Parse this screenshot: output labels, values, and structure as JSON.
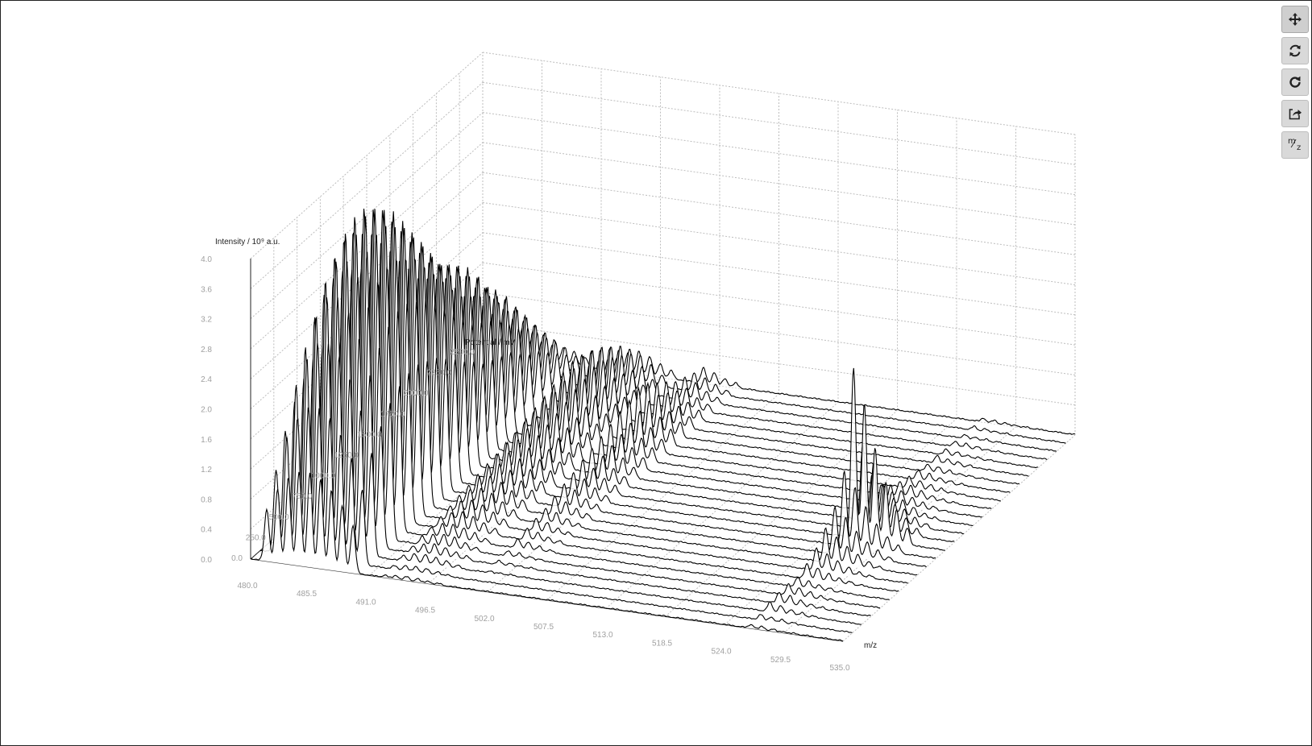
{
  "toolbar": {
    "buttons": [
      {
        "name": "pan-tool",
        "icon": "move-arrows-icon"
      },
      {
        "name": "rotate-tool",
        "icon": "rotate-arrows-icon"
      },
      {
        "name": "reset-view",
        "icon": "refresh-icon"
      },
      {
        "name": "export",
        "icon": "share-export-icon"
      },
      {
        "name": "mz-unit",
        "icon": "m-over-z-icon",
        "label_m": "m",
        "label_z": "z"
      }
    ]
  },
  "chart_data": {
    "type": "line",
    "title": "",
    "xlabel": "m/z",
    "ylabel": "Potential / mV",
    "zlabel": "Intensity / 10⁹ a.u.",
    "x_ticks": [
      "480.0",
      "485.5",
      "491.0",
      "496.5",
      "502.0",
      "507.5",
      "513.0",
      "518.5",
      "524.0",
      "529.5",
      "535.0"
    ],
    "y_ticks": [
      "0.0",
      "250.0",
      "500.0",
      "750.0",
      "1000.0",
      "1250.0",
      "1500.0",
      "1750.0",
      "2000.0",
      "2250.0",
      "2500.0"
    ],
    "z_ticks": [
      "0.0",
      "0.4",
      "0.8",
      "1.2",
      "1.6",
      "2.0",
      "2.4",
      "2.8",
      "3.2",
      "3.6",
      "4.0"
    ],
    "xlim": [
      480,
      535
    ],
    "ylim": [
      0,
      2500
    ],
    "zlim": [
      0,
      4
    ],
    "grid": true,
    "line_color": "#000000",
    "grid_color": "#bdbdbd",
    "tick_color": "#a0a0a0",
    "potentials": [
      0,
      100,
      200,
      300,
      400,
      500,
      600,
      700,
      800,
      900,
      1000,
      1100,
      1200,
      1300,
      1400,
      1500,
      1600,
      1700,
      1800,
      1900,
      2000,
      2100,
      2200,
      2300,
      2400,
      2500
    ],
    "peak_groups": [
      {
        "center": 485.5,
        "spacing": 1.0,
        "count": 9,
        "width": 0.22,
        "amplitudes_by_potential": [
          0.5,
          0.8,
          1.1,
          1.3,
          1.45,
          1.55,
          1.6,
          1.6,
          1.55,
          1.5,
          1.4,
          1.3,
          1.2,
          1.1,
          1.0,
          0.95,
          0.9,
          0.85,
          0.75,
          0.65,
          0.6,
          0.5,
          0.4,
          0.3,
          0.2,
          0.1
        ],
        "envelope": [
          0.55,
          0.78,
          0.92,
          1.0,
          1.0,
          0.95,
          0.85,
          0.7,
          0.5
        ]
      },
      {
        "center": 495.0,
        "spacing": 1.0,
        "count": 6,
        "width": 0.22,
        "amplitudes_by_potential": [
          0.02,
          0.03,
          0.05,
          0.06,
          0.07,
          0.08,
          0.1,
          0.12,
          0.14,
          0.16,
          0.18,
          0.2,
          0.22,
          0.24,
          0.26,
          0.28,
          0.3,
          0.32,
          0.34,
          0.36,
          0.35,
          0.32,
          0.28,
          0.24,
          0.18,
          0.12
        ],
        "envelope": [
          0.6,
          0.9,
          1.0,
          0.85,
          0.6,
          0.35
        ]
      },
      {
        "center": 502.0,
        "spacing": 1.0,
        "count": 4,
        "width": 0.22,
        "amplitudes_by_potential": [
          0.0,
          0.0,
          0.01,
          0.02,
          0.03,
          0.05,
          0.06,
          0.07,
          0.08,
          0.1,
          0.12,
          0.14,
          0.16,
          0.18,
          0.2,
          0.22,
          0.24,
          0.26,
          0.28,
          0.26,
          0.22,
          0.18,
          0.14,
          0.12,
          0.1,
          0.08
        ],
        "envelope": [
          1.0,
          0.8,
          0.5,
          0.3
        ]
      },
      {
        "center": 529.0,
        "spacing": 1.0,
        "count": 6,
        "width": 0.22,
        "amplitudes_by_potential": [
          0.02,
          0.03,
          0.05,
          0.06,
          0.06,
          0.05,
          0.08,
          0.12,
          0.18,
          0.25,
          0.4,
          0.9,
          0.45,
          0.25,
          0.15,
          0.1,
          0.08,
          0.06,
          0.05,
          0.04,
          0.04,
          0.03,
          0.03,
          0.02,
          0.02,
          0.02
        ],
        "envelope": [
          1.0,
          0.8,
          0.55,
          0.35,
          0.2,
          0.1
        ]
      }
    ]
  }
}
